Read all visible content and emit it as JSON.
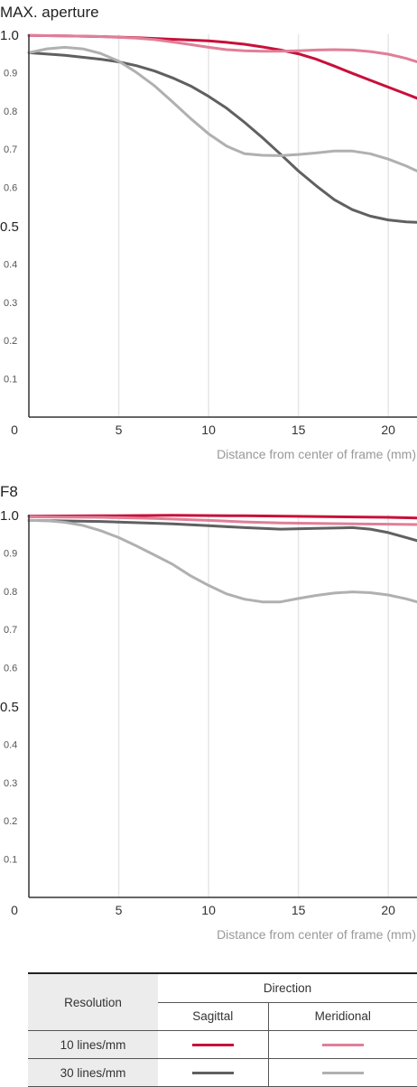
{
  "chart_data": [
    {
      "type": "line",
      "title": "MAX. aperture",
      "xlabel": "Distance from center of frame (mm)",
      "ylabel": "",
      "xlim": [
        0,
        21.6
      ],
      "ylim": [
        0,
        1.0
      ],
      "x_ticks": [
        "0",
        "5",
        "10",
        "15",
        "20"
      ],
      "y_ticks": [
        "0.1",
        "0.2",
        "0.3",
        "0.4",
        "0.5",
        "0.6",
        "0.7",
        "0.8",
        "0.9",
        "1.0"
      ],
      "grid": "vertical",
      "series": [
        {
          "color": "#c8103a",
          "x": [
            0,
            2,
            4,
            6,
            8,
            10,
            11,
            12,
            13,
            14,
            15,
            16,
            17,
            18,
            19,
            20,
            21,
            21.6
          ],
          "y": [
            0.997,
            0.996,
            0.994,
            0.991,
            0.987,
            0.983,
            0.979,
            0.974,
            0.967,
            0.959,
            0.949,
            0.935,
            0.917,
            0.898,
            0.88,
            0.862,
            0.844,
            0.833
          ]
        },
        {
          "color": "#e07f98",
          "x": [
            0,
            2,
            4,
            6,
            7,
            8,
            9,
            10,
            11,
            12,
            13,
            14,
            15,
            16,
            17,
            18,
            19,
            20,
            21,
            21.6
          ],
          "y": [
            0.997,
            0.996,
            0.994,
            0.99,
            0.986,
            0.98,
            0.973,
            0.966,
            0.96,
            0.957,
            0.956,
            0.956,
            0.957,
            0.959,
            0.96,
            0.959,
            0.955,
            0.948,
            0.937,
            0.928
          ]
        },
        {
          "color": "#606060",
          "x": [
            0,
            2,
            4,
            5,
            6,
            7,
            8,
            9,
            10,
            11,
            12,
            13,
            14,
            15,
            16,
            17,
            18,
            19,
            20,
            21,
            21.6
          ],
          "y": [
            0.952,
            0.945,
            0.935,
            0.928,
            0.918,
            0.904,
            0.886,
            0.865,
            0.838,
            0.807,
            0.77,
            0.73,
            0.687,
            0.643,
            0.604,
            0.568,
            0.542,
            0.525,
            0.515,
            0.51,
            0.509
          ]
        },
        {
          "color": "#b0b0b0",
          "x": [
            0,
            1,
            2,
            3,
            4,
            5,
            6,
            7,
            8,
            9,
            10,
            11,
            12,
            13,
            14,
            15,
            16,
            17,
            18,
            19,
            20,
            21,
            21.6
          ],
          "y": [
            0.952,
            0.962,
            0.966,
            0.962,
            0.95,
            0.93,
            0.9,
            0.865,
            0.823,
            0.78,
            0.74,
            0.708,
            0.688,
            0.684,
            0.683,
            0.686,
            0.69,
            0.695,
            0.695,
            0.688,
            0.674,
            0.656,
            0.643
          ]
        }
      ]
    },
    {
      "type": "line",
      "title": "F8",
      "xlabel": "Distance from center of frame (mm)",
      "ylabel": "",
      "xlim": [
        0,
        21.6
      ],
      "ylim": [
        0,
        1.0
      ],
      "x_ticks": [
        "0",
        "5",
        "10",
        "15",
        "20"
      ],
      "y_ticks": [
        "0.1",
        "0.2",
        "0.3",
        "0.4",
        "0.5",
        "0.6",
        "0.7",
        "0.8",
        "0.9",
        "1.0"
      ],
      "grid": "vertical",
      "series": [
        {
          "color": "#c8103a",
          "x": [
            0,
            4,
            8,
            12,
            16,
            20,
            21.6
          ],
          "y": [
            0.996,
            0.997,
            0.998,
            0.997,
            0.995,
            0.993,
            0.991
          ]
        },
        {
          "color": "#e07f98",
          "x": [
            0,
            4,
            7,
            10,
            12,
            14,
            16,
            18,
            20,
            21.6
          ],
          "y": [
            0.994,
            0.993,
            0.99,
            0.985,
            0.981,
            0.978,
            0.977,
            0.976,
            0.975,
            0.974
          ]
        },
        {
          "color": "#606060",
          "x": [
            0,
            4,
            8,
            10,
            12,
            14,
            16,
            18,
            19,
            20,
            21,
            21.6
          ],
          "y": [
            0.985,
            0.982,
            0.976,
            0.971,
            0.966,
            0.962,
            0.964,
            0.966,
            0.962,
            0.953,
            0.94,
            0.932
          ]
        },
        {
          "color": "#b0b0b0",
          "x": [
            0,
            1,
            2,
            3,
            4,
            5,
            6,
            7,
            8,
            9,
            10,
            11,
            12,
            13,
            14,
            15,
            16,
            17,
            18,
            19,
            20,
            21,
            21.6
          ],
          "y": [
            0.985,
            0.984,
            0.98,
            0.972,
            0.958,
            0.94,
            0.918,
            0.894,
            0.87,
            0.84,
            0.815,
            0.793,
            0.779,
            0.772,
            0.772,
            0.781,
            0.789,
            0.795,
            0.798,
            0.796,
            0.79,
            0.78,
            0.772
          ]
        }
      ]
    }
  ],
  "legend": {
    "resolution_header": "Resolution",
    "direction_header": "Direction",
    "sagittal_header": "Sagittal",
    "meridional_header": "Meridional",
    "rows": [
      {
        "label": "10 lines/mm",
        "sagittal_color": "#c8103a",
        "meridional_color": "#e07f98"
      },
      {
        "label": "30 lines/mm",
        "sagittal_color": "#606060",
        "meridional_color": "#b0b0b0"
      }
    ]
  }
}
